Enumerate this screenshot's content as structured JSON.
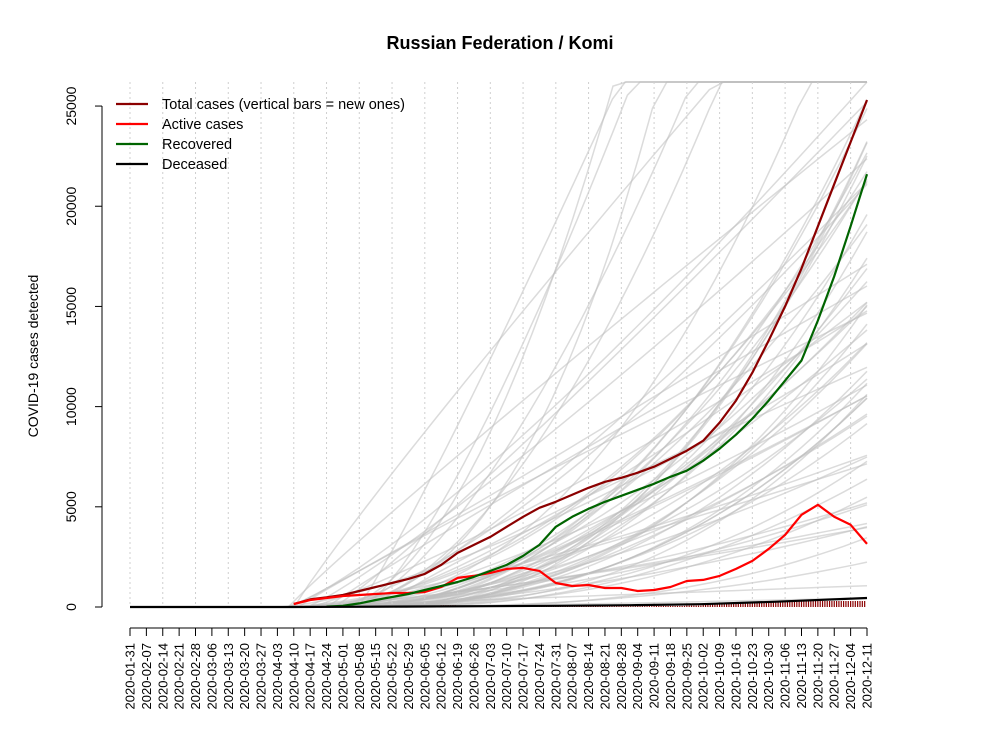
{
  "chart_data": {
    "type": "line",
    "title": "Russian Federation / Komi",
    "ylabel": "COVID-19 cases detected",
    "xlabel": "",
    "ylim": [
      0,
      25000
    ],
    "yticks": [
      0,
      5000,
      10000,
      15000,
      20000,
      25000
    ],
    "xlim": [
      "2020-01-31",
      "2020-12-11"
    ],
    "xticks": [
      "2020-01-31",
      "2020-02-07",
      "2020-02-14",
      "2020-02-21",
      "2020-02-28",
      "2020-03-06",
      "2020-03-13",
      "2020-03-20",
      "2020-03-27",
      "2020-04-03",
      "2020-04-10",
      "2020-04-17",
      "2020-04-24",
      "2020-05-01",
      "2020-05-08",
      "2020-05-15",
      "2020-05-22",
      "2020-05-29",
      "2020-06-05",
      "2020-06-12",
      "2020-06-19",
      "2020-06-26",
      "2020-07-03",
      "2020-07-10",
      "2020-07-17",
      "2020-07-24",
      "2020-07-31",
      "2020-08-07",
      "2020-08-14",
      "2020-08-21",
      "2020-08-28",
      "2020-09-04",
      "2020-09-11",
      "2020-09-18",
      "2020-09-25",
      "2020-10-02",
      "2020-10-09",
      "2020-10-16",
      "2020-10-23",
      "2020-10-30",
      "2020-11-06",
      "2020-11-13",
      "2020-11-20",
      "2020-11-27",
      "2020-12-04",
      "2020-12-11"
    ],
    "legend_position": "top-left",
    "legend": [
      {
        "label": "Total cases (vertical bars = new ones)",
        "color": "#8b0000"
      },
      {
        "label": "Active cases",
        "color": "#ff0000"
      },
      {
        "label": "Recovered",
        "color": "#006400"
      },
      {
        "label": "Deceased",
        "color": "#000000"
      }
    ],
    "series": [
      {
        "name": "Total cases (vertical bars = new ones)",
        "color": "#8b0000",
        "x": [
          "2020-04-10",
          "2020-04-17",
          "2020-04-24",
          "2020-05-01",
          "2020-05-08",
          "2020-05-15",
          "2020-05-22",
          "2020-05-29",
          "2020-06-05",
          "2020-06-12",
          "2020-06-19",
          "2020-06-26",
          "2020-07-03",
          "2020-07-10",
          "2020-07-17",
          "2020-07-24",
          "2020-07-31",
          "2020-08-07",
          "2020-08-14",
          "2020-08-21",
          "2020-08-28",
          "2020-09-04",
          "2020-09-11",
          "2020-09-18",
          "2020-09-25",
          "2020-10-02",
          "2020-10-09",
          "2020-10-16",
          "2020-10-23",
          "2020-10-30",
          "2020-11-06",
          "2020-11-13",
          "2020-11-20",
          "2020-11-27",
          "2020-12-04",
          "2020-12-11"
        ],
        "values": [
          150,
          380,
          480,
          600,
          800,
          1000,
          1200,
          1400,
          1650,
          2100,
          2700,
          3100,
          3500,
          4000,
          4500,
          4950,
          5250,
          5600,
          5950,
          6250,
          6450,
          6700,
          7000,
          7400,
          7800,
          8300,
          9200,
          10300,
          11700,
          13300,
          15000,
          16900,
          19000,
          21100,
          23200,
          25300
        ]
      },
      {
        "name": "Active cases",
        "color": "#ff0000",
        "x": [
          "2020-04-10",
          "2020-04-17",
          "2020-04-24",
          "2020-05-01",
          "2020-05-08",
          "2020-05-15",
          "2020-05-22",
          "2020-05-29",
          "2020-06-05",
          "2020-06-12",
          "2020-06-19",
          "2020-06-26",
          "2020-07-03",
          "2020-07-10",
          "2020-07-17",
          "2020-07-24",
          "2020-07-31",
          "2020-08-07",
          "2020-08-14",
          "2020-08-21",
          "2020-08-28",
          "2020-09-04",
          "2020-09-11",
          "2020-09-18",
          "2020-09-25",
          "2020-10-02",
          "2020-10-09",
          "2020-10-16",
          "2020-10-23",
          "2020-10-30",
          "2020-11-06",
          "2020-11-13",
          "2020-11-20",
          "2020-11-27",
          "2020-12-04",
          "2020-12-11"
        ],
        "values": [
          150,
          350,
          450,
          550,
          600,
          650,
          700,
          700,
          750,
          1000,
          1450,
          1550,
          1700,
          1900,
          1950,
          1800,
          1200,
          1050,
          1100,
          950,
          950,
          800,
          850,
          1000,
          1300,
          1350,
          1550,
          1900,
          2300,
          2900,
          3600,
          4600,
          5100,
          4500,
          4100,
          3150
        ]
      },
      {
        "name": "Recovered",
        "color": "#006400",
        "x": [
          "2020-04-24",
          "2020-05-01",
          "2020-05-08",
          "2020-05-15",
          "2020-05-22",
          "2020-05-29",
          "2020-06-05",
          "2020-06-12",
          "2020-06-19",
          "2020-06-26",
          "2020-07-03",
          "2020-07-10",
          "2020-07-17",
          "2020-07-24",
          "2020-07-31",
          "2020-08-07",
          "2020-08-14",
          "2020-08-21",
          "2020-08-28",
          "2020-09-04",
          "2020-09-11",
          "2020-09-18",
          "2020-09-25",
          "2020-10-02",
          "2020-10-09",
          "2020-10-16",
          "2020-10-23",
          "2020-10-30",
          "2020-11-06",
          "2020-11-13",
          "2020-11-20",
          "2020-11-27",
          "2020-12-04",
          "2020-12-11"
        ],
        "values": [
          20,
          60,
          180,
          350,
          500,
          650,
          850,
          1050,
          1250,
          1500,
          1800,
          2100,
          2550,
          3100,
          4000,
          4500,
          4900,
          5250,
          5550,
          5850,
          6150,
          6500,
          6800,
          7300,
          7900,
          8600,
          9400,
          10300,
          11300,
          12300,
          14300,
          16500,
          19000,
          21600
        ]
      },
      {
        "name": "Deceased",
        "color": "#000000",
        "x": [
          "2020-01-31",
          "2020-04-10",
          "2020-05-01",
          "2020-06-01",
          "2020-07-01",
          "2020-08-01",
          "2020-09-01",
          "2020-10-01",
          "2020-11-01",
          "2020-12-11"
        ],
        "values": [
          0,
          2,
          10,
          25,
          40,
          60,
          90,
          140,
          260,
          450
        ]
      }
    ]
  }
}
